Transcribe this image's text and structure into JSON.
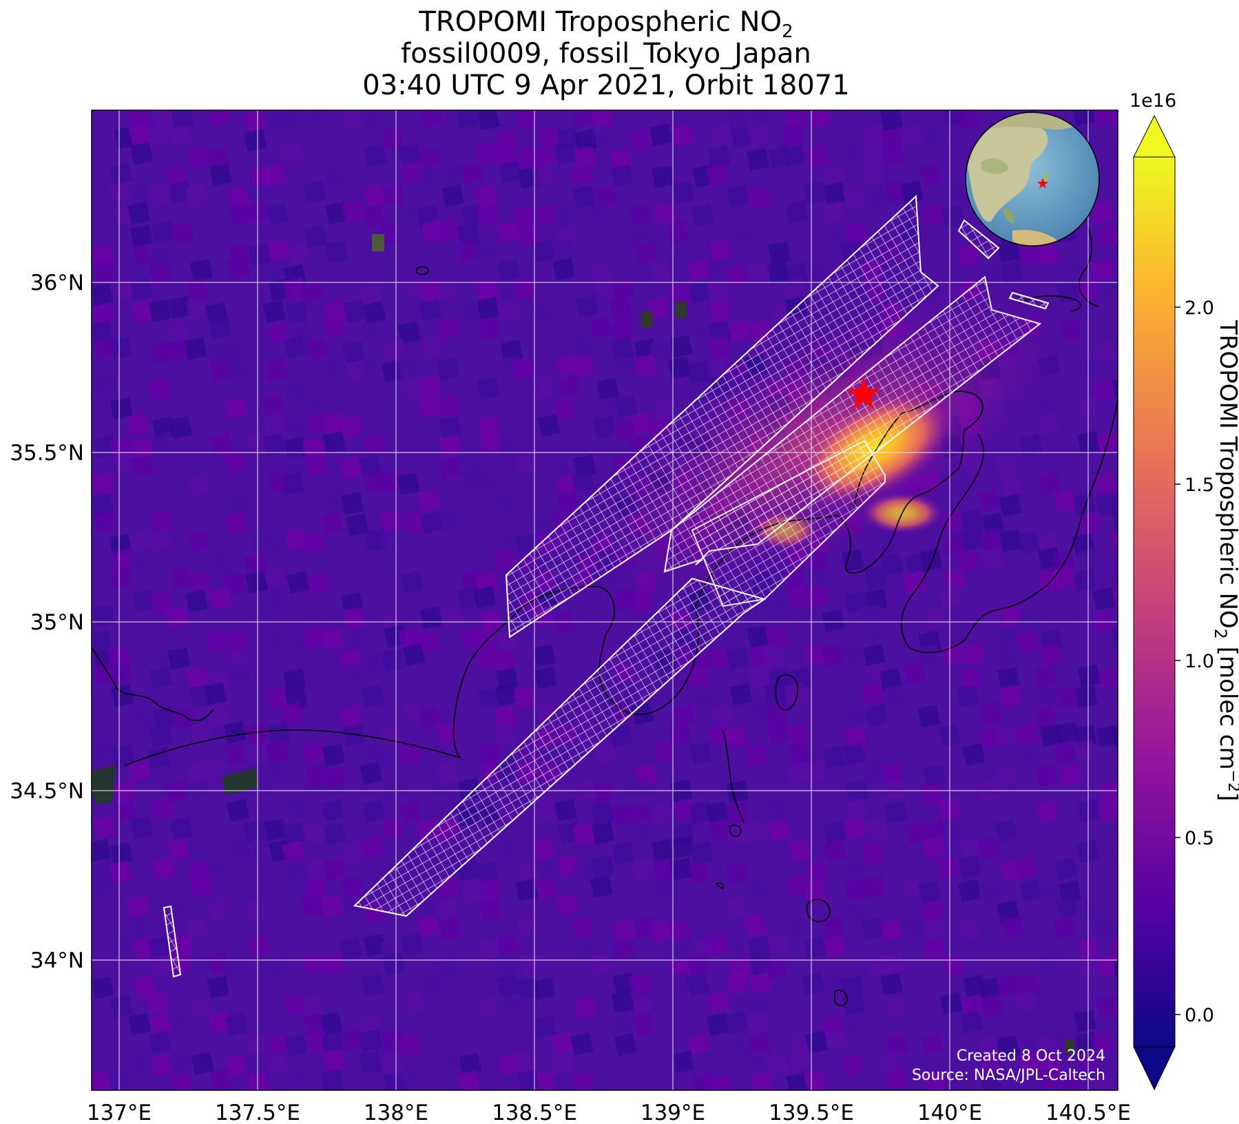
{
  "title": {
    "line1_main": "TROPOMI Tropospheric NO",
    "line1_sub": "2",
    "line2": "fossil0009, fossil_Tokyo_Japan",
    "line3": "03:40 UTC 9 Apr 2021, Orbit 18071"
  },
  "axes": {
    "lon_ticks": [
      "137°E",
      "137.5°E",
      "138°E",
      "138.5°E",
      "139°E",
      "139.5°E",
      "140°E",
      "140.5°E"
    ],
    "lat_ticks": [
      "36°N",
      "35.5°N",
      "35°N",
      "34.5°N",
      "34°N"
    ]
  },
  "colorbar": {
    "exponent": "1e16",
    "ticks": [
      "0.0",
      "0.5",
      "1.0",
      "1.5",
      "2.0"
    ],
    "label_main": "TROPOMI Tropospheric NO",
    "label_sub": "2",
    "label_units_pre": " [molec cm",
    "label_units_sup": "−2",
    "label_units_post": "]",
    "colors": [
      "#0d0887",
      "#5b02a3",
      "#9a179b",
      "#cb4678",
      "#eb7852",
      "#fbb32f",
      "#eff821"
    ]
  },
  "credits": {
    "line1": "Created 8 Oct 2024",
    "line2": "Source: NASA/JPL-Caltech"
  },
  "colors": {
    "background": "#4d0fa0",
    "hotspot": "#fbb32f",
    "grid": "#e6e6e6",
    "target_star": "#ff0000",
    "footprint": "#ffffff"
  },
  "map": {
    "target_marker": "red-star",
    "inset": "globe-locator"
  }
}
